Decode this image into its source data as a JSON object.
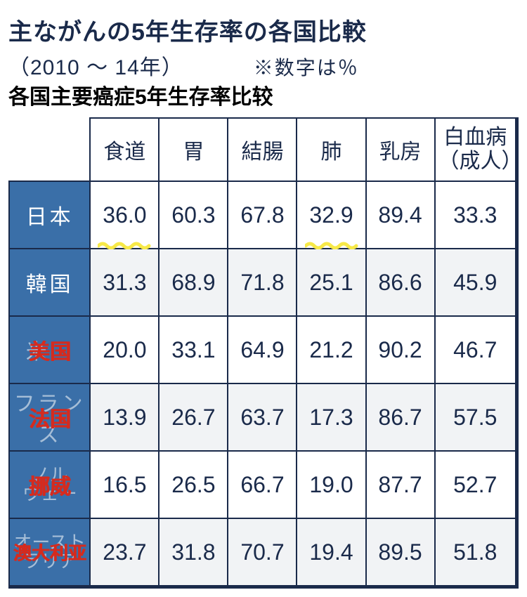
{
  "title": {
    "main": "主ながんの5年生存率の各国比較",
    "year_range": "（2010 ～ 14年）",
    "note": "※数字は％",
    "cn_subtitle": "各国主要癌症5年生存率比较"
  },
  "columns": [
    {
      "label": "食道"
    },
    {
      "label": "胃"
    },
    {
      "label": "結腸"
    },
    {
      "label": "肺"
    },
    {
      "label": "乳房"
    },
    {
      "label": "白血病\n（成人）"
    }
  ],
  "rows": [
    {
      "jp": "日本",
      "cn_overlay": null,
      "values": [
        "36.0",
        "60.3",
        "67.8",
        "32.9",
        "89.4",
        "33.3"
      ],
      "highlights": [
        0,
        3
      ]
    },
    {
      "jp": "韓国",
      "cn_overlay": null,
      "values": [
        "31.3",
        "68.9",
        "71.8",
        "25.1",
        "86.6",
        "45.9"
      ]
    },
    {
      "jp": "米国",
      "cn_overlay": "美国",
      "values": [
        "20.0",
        "33.1",
        "64.9",
        "21.2",
        "90.2",
        "46.7"
      ]
    },
    {
      "jp": "フランス",
      "cn_overlay": "法国",
      "values": [
        "13.9",
        "26.7",
        "63.7",
        "17.3",
        "86.7",
        "57.5"
      ]
    },
    {
      "jp": "ノル\nウェー",
      "cn_overlay": "挪威",
      "values": [
        "16.5",
        "26.5",
        "66.7",
        "19.0",
        "87.7",
        "52.7"
      ]
    },
    {
      "jp": "オースト\nラリア",
      "cn_overlay": "澳大利亚",
      "values": [
        "23.7",
        "31.8",
        "70.7",
        "19.4",
        "89.5",
        "51.8"
      ]
    }
  ],
  "style": {
    "header_bg": "#3a6fa8",
    "highlight_color": "#f7e948",
    "overlay_color": "#d52b1e",
    "border_color": "#1a2a4a",
    "alt_row_bg": "#f1f3f5"
  }
}
